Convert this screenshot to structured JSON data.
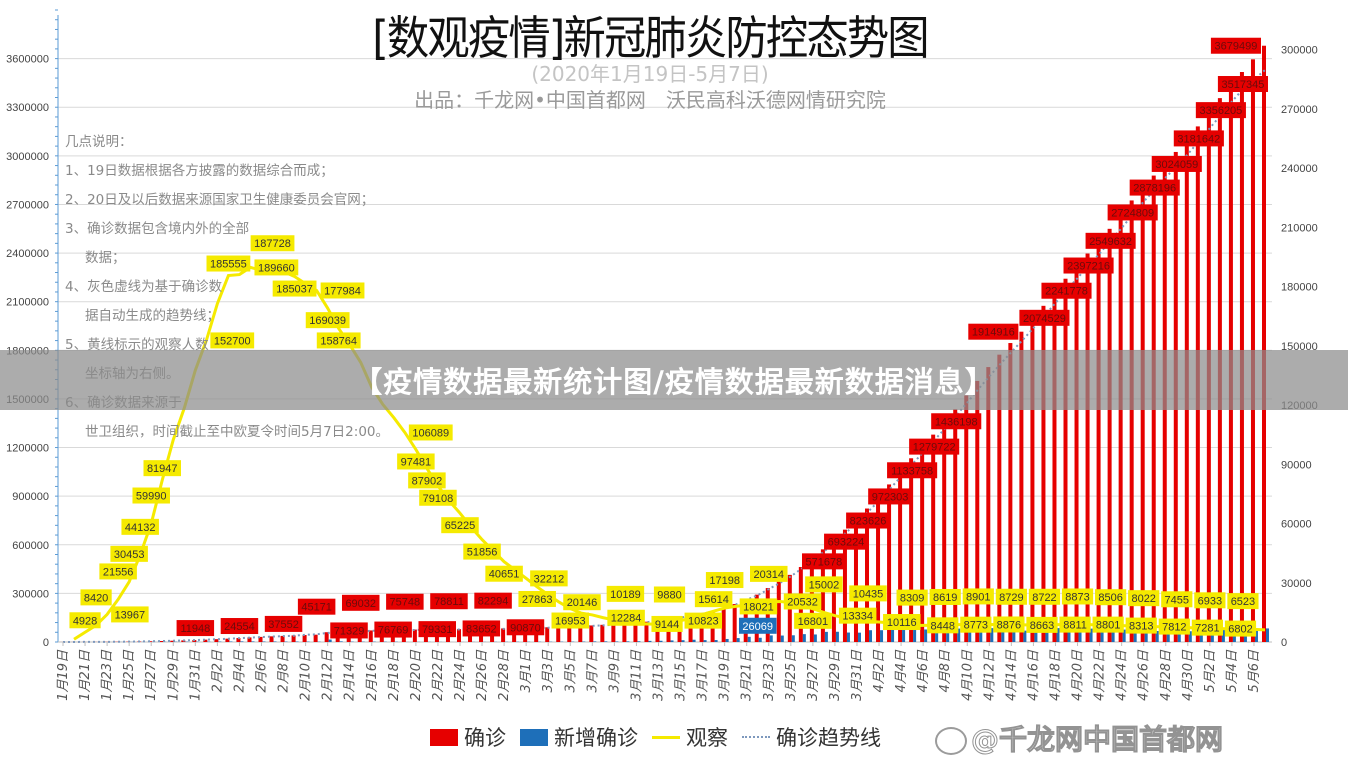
{
  "header": {
    "title": "[数观疫情]新冠肺炎防控态势图",
    "subtitle": "(2020年1月19日-5月7日)",
    "source": "出品：千龙网•中国首都网　沃民高科沃德网情研究院"
  },
  "notes": [
    "几点说明：",
    "1、19日数据根据各方披露的数据综合而成；",
    "2、20日及以后数据来源国家卫生健康委员会官网；",
    "3、确诊数据包含境内外的全部",
    "数据；",
    "4、灰色虚线为基于确诊数",
    "据自动生成的趋势线；",
    "5、黄线标示的观察人数",
    "坐标轴为右侧。",
    "6、确诊数据来源于",
    "世卫组织，时间截止至中欧夏令时间5月7日2:00。"
  ],
  "banner": "【疫情数据最新统计图/疫情数据最新数据消息】",
  "watermark": "@千龙网中国首都网",
  "legend": [
    "确诊",
    "新增确诊",
    "观察",
    "确诊趋势线"
  ],
  "colors": {
    "confirmed": "#e60000",
    "new_confirmed": "#1e6fb9",
    "observed": "#f5ea00",
    "trend": "#7d98bd"
  },
  "chart_data": {
    "type": "bar",
    "title": "[数观疫情]新冠肺炎防控态势图",
    "xlabel": "",
    "ylabel": "",
    "y_left": {
      "min": 0,
      "max": 3900000,
      "ticks": [
        0,
        300000,
        600000,
        900000,
        1200000,
        1500000,
        1800000,
        2100000,
        2400000,
        2700000,
        3000000,
        3300000,
        3600000
      ]
    },
    "y_right": {
      "min": 0,
      "max": 320000,
      "ticks": [
        0,
        30000,
        60000,
        90000,
        120000,
        150000,
        180000,
        210000,
        240000,
        270000,
        300000
      ]
    },
    "grid": true,
    "legend_position": "bottom",
    "tick_label_every": 2,
    "categories": [
      "1月19日",
      "1月20日",
      "1月21日",
      "1月22日",
      "1月23日",
      "1月24日",
      "1月25日",
      "1月26日",
      "1月27日",
      "1月28日",
      "1月29日",
      "1月30日",
      "1月31日",
      "2月1日",
      "2月2日",
      "2月3日",
      "2月4日",
      "2月5日",
      "2月6日",
      "2月7日",
      "2月8日",
      "2月9日",
      "2月10日",
      "2月11日",
      "2月12日",
      "2月13日",
      "2月14日",
      "2月15日",
      "2月16日",
      "2月17日",
      "2月18日",
      "2月19日",
      "2月20日",
      "2月21日",
      "2月22日",
      "2月23日",
      "2月24日",
      "2月25日",
      "2月26日",
      "2月27日",
      "2月28日",
      "2月29日",
      "3月1日",
      "3月2日",
      "3月3日",
      "3月4日",
      "3月5日",
      "3月6日",
      "3月7日",
      "3月8日",
      "3月9日",
      "3月10日",
      "3月11日",
      "3月12日",
      "3月13日",
      "3月14日",
      "3月15日",
      "3月16日",
      "3月17日",
      "3月18日",
      "3月19日",
      "3月20日",
      "3月21日",
      "3月22日",
      "3月23日",
      "3月24日",
      "3月25日",
      "3月26日",
      "3月27日",
      "3月28日",
      "3月29日",
      "3月30日",
      "3月31日",
      "4月1日",
      "4月2日",
      "4月3日",
      "4月4日",
      "4月5日",
      "4月6日",
      "4月7日",
      "4月8日",
      "4月9日",
      "4月10日",
      "4月11日",
      "4月12日",
      "4月13日",
      "4月14日",
      "4月15日",
      "4月16日",
      "4月17日",
      "4月18日",
      "4月19日",
      "4月20日",
      "4月21日",
      "4月22日",
      "4月23日",
      "4月24日",
      "4月25日",
      "4月26日",
      "4月27日",
      "4月28日",
      "4月29日",
      "4月30日",
      "5月1日",
      "5月2日",
      "5月3日",
      "5月4日",
      "5月5日",
      "5月6日",
      "5月7日"
    ],
    "series": [
      {
        "name": "确诊",
        "type": "bar",
        "axis": "left",
        "values": [
          198,
          291,
          440,
          580,
          846,
          1320,
          2019,
          2798,
          4593,
          6061,
          7818,
          9826,
          11948,
          14557,
          17391,
          20630,
          24554,
          28276,
          31481,
          34886,
          37552,
          40554,
          43103,
          45171,
          60363,
          64437,
          66886,
          69032,
          71329,
          73332,
          75204,
          75748,
          76769,
          77794,
          78630,
          78811,
          79331,
          80239,
          81109,
          82294,
          83652,
          85403,
          87137,
          88948,
          90870,
          93090,
          95324,
          98192,
          102050,
          106100,
          109578,
          113702,
          118326,
          125260,
          132758,
          142534,
          153517,
          167511,
          179111,
          191127,
          209839,
          234073,
          266073,
          292142,
          332930,
          372757,
          414179,
          462684,
          509164,
          571678,
          634835,
          693224,
          750890,
          823626,
          896450,
          972303,
          1051697,
          1133758,
          1210956,
          1279722,
          1353361,
          1436198,
          1521252,
          1610909,
          1696588,
          1773084,
          1844863,
          1914916,
          1991562,
          2074529,
          2160207,
          2241778,
          2314621,
          2397216,
          2471136,
          2549632,
          2626321,
          2724809,
          2810325,
          2878196,
          2959929,
          3024059,
          3090445,
          3181642,
          3272202,
          3356205,
          3442234,
          3517345,
          3595662,
          3679499
        ]
      },
      {
        "name": "新增确诊",
        "type": "bar",
        "axis": "left",
        "values": [
          77,
          93,
          149,
          140,
          266,
          474,
          699,
          779,
          1795,
          1468,
          1757,
          2008,
          2122,
          2609,
          2834,
          3239,
          3924,
          3722,
          3205,
          3405,
          2666,
          3002,
          2549,
          2068,
          15152,
          4074,
          2449,
          2146,
          2297,
          2003,
          1872,
          544,
          1021,
          1025,
          836,
          181,
          520,
          908,
          870,
          1185,
          1358,
          1751,
          1734,
          1811,
          1922,
          2220,
          2234,
          2868,
          3858,
          4050,
          3478,
          4124,
          4624,
          6934,
          7498,
          9776,
          10983,
          13994,
          11600,
          12016,
          18712,
          24234,
          32000,
          26069,
          40788,
          39827,
          41422,
          48505,
          46480,
          62514,
          63157,
          58389,
          57666,
          72736,
          72824,
          75853,
          79394,
          82061,
          77198,
          68766,
          73639,
          82837,
          85054,
          89657,
          85679,
          76496,
          71779,
          70053,
          76646,
          82967,
          85678,
          81571,
          72843,
          82595,
          73920,
          78080,
          76689,
          98488,
          85516,
          67871,
          81733,
          64130,
          66386,
          91197,
          90560,
          84003,
          86029,
          75111,
          78317,
          83837
        ]
      },
      {
        "name": "观察",
        "type": "line",
        "axis": "right",
        "values": [
          null,
          1394,
          4928,
          8420,
          13967,
          21556,
          30453,
          44132,
          59990,
          81947,
          102427,
          118478,
          137594,
          152700,
          171329,
          185555,
          186045,
          189660,
          188183,
          187728,
          187518,
          185037,
          181386,
          177984,
          169039,
          158764,
          150539,
          141552,
          128916,
          120302,
          113564,
          106089,
          97481,
          87902,
          79108,
          71572,
          65225,
          58233,
          51856,
          46219,
          40651,
          36432,
          32212,
          27863,
          23935,
          20146,
          16953,
          14607,
          13701,
          12284,
          11183,
          10189,
          9351,
          9144,
          8989,
          9880,
          10823,
          12051,
          13989,
          15614,
          17198,
          18021,
          18722,
          19853,
          20314,
          20532,
          20018,
          18584,
          16801,
          15002,
          13334,
          12282,
          11309,
          10435,
          10116,
          9655,
          9125,
          8309,
          8448,
          8484,
          8619,
          8773,
          8842,
          8901,
          8876,
          8812,
          8729,
          8663,
          8671,
          8722,
          8811,
          8855,
          8873,
          8801,
          8654,
          8506,
          8313,
          8165,
          8022,
          7812,
          7634,
          7455,
          7281,
          7102,
          6933,
          6802,
          6651,
          6523,
          6381,
          6167
        ]
      },
      {
        "name": "确诊趋势线",
        "type": "trendline",
        "axis": "left",
        "based_on": "确诊"
      }
    ]
  }
}
